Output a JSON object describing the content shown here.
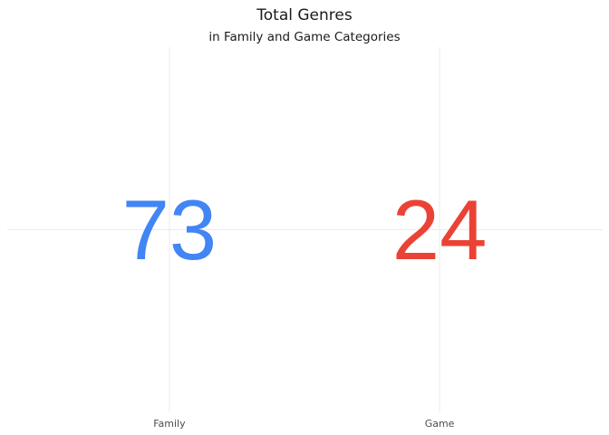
{
  "chart_data": {
    "type": "text",
    "title": "Total Genres",
    "subtitle": "in Family and Game Categories",
    "categories": [
      "Family",
      "Game"
    ],
    "values": [
      73,
      24
    ],
    "colors": [
      "#4285F4",
      "#EA4335"
    ],
    "grid": true,
    "legend": "none"
  }
}
